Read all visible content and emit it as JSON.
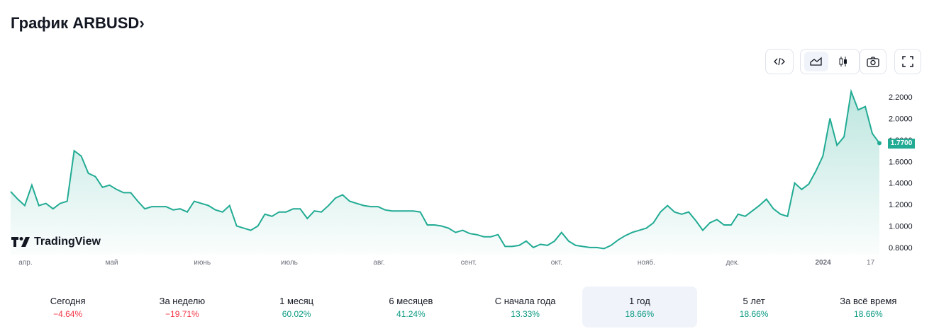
{
  "header": {
    "title": "График ARBUSD",
    "chevron": "›"
  },
  "toolbar": {
    "buttons": [
      "embed-icon",
      "area-chart-icon",
      "candles-icon",
      "camera-icon",
      "fullscreen-icon"
    ],
    "active": "area-chart-icon"
  },
  "logo": {
    "text": "TradingView"
  },
  "colors": {
    "line": "#22ab94",
    "neg": "#f23645",
    "pos": "#089981"
  },
  "chart_data": {
    "type": "area",
    "title": "ARBUSD",
    "ylim": [
      0.8,
      2.2
    ],
    "yticks": [
      "2.2000",
      "2.0000",
      "1.8000",
      "1.6000",
      "1.4000",
      "1.2000",
      "1.0000",
      "0.8000"
    ],
    "ytick_values": [
      2.2,
      2.0,
      1.8,
      1.6,
      1.4,
      1.2,
      1.0,
      0.8
    ],
    "xticks": [
      {
        "label": "апр.",
        "pos": 0.029
      },
      {
        "label": "май",
        "pos": 0.127
      },
      {
        "label": "июнь",
        "pos": 0.23
      },
      {
        "label": "июль",
        "pos": 0.329
      },
      {
        "label": "авг.",
        "pos": 0.431
      },
      {
        "label": "сент.",
        "pos": 0.533
      },
      {
        "label": "окт.",
        "pos": 0.633
      },
      {
        "label": "нояб.",
        "pos": 0.735
      },
      {
        "label": "дек.",
        "pos": 0.833
      },
      {
        "label": "2024",
        "pos": 0.936,
        "bold": true
      },
      {
        "label": "17",
        "pos": 0.99
      }
    ],
    "last_price": "1.7700",
    "values": [
      1.32,
      1.25,
      1.19,
      1.38,
      1.19,
      1.21,
      1.16,
      1.21,
      1.23,
      1.7,
      1.65,
      1.49,
      1.46,
      1.36,
      1.38,
      1.34,
      1.31,
      1.31,
      1.23,
      1.16,
      1.18,
      1.18,
      1.18,
      1.15,
      1.16,
      1.13,
      1.23,
      1.21,
      1.19,
      1.15,
      1.13,
      1.19,
      1.0,
      0.98,
      0.96,
      1.0,
      1.11,
      1.09,
      1.13,
      1.13,
      1.16,
      1.16,
      1.07,
      1.14,
      1.13,
      1.19,
      1.26,
      1.29,
      1.23,
      1.21,
      1.19,
      1.18,
      1.18,
      1.15,
      1.14,
      1.14,
      1.14,
      1.14,
      1.13,
      1.01,
      1.01,
      1.0,
      0.98,
      0.94,
      0.96,
      0.93,
      0.92,
      0.9,
      0.9,
      0.92,
      0.81,
      0.81,
      0.82,
      0.86,
      0.8,
      0.83,
      0.82,
      0.86,
      0.94,
      0.86,
      0.82,
      0.81,
      0.8,
      0.8,
      0.79,
      0.82,
      0.87,
      0.91,
      0.94,
      0.96,
      0.98,
      1.03,
      1.13,
      1.19,
      1.13,
      1.11,
      1.13,
      1.05,
      0.96,
      1.03,
      1.06,
      1.01,
      1.01,
      1.11,
      1.09,
      1.14,
      1.19,
      1.25,
      1.16,
      1.11,
      1.09,
      1.4,
      1.34,
      1.39,
      1.51,
      1.65,
      2.0,
      1.75,
      1.83,
      2.25,
      2.08,
      2.11,
      1.86,
      1.77
    ]
  },
  "periods": [
    {
      "label": "Сегодня",
      "value": "−4.64%",
      "sign": "neg"
    },
    {
      "label": "За неделю",
      "value": "−19.71%",
      "sign": "neg"
    },
    {
      "label": "1 месяц",
      "value": "60.02%",
      "sign": "pos"
    },
    {
      "label": "6 месяцев",
      "value": "41.24%",
      "sign": "pos"
    },
    {
      "label": "С начала года",
      "value": "13.33%",
      "sign": "pos"
    },
    {
      "label": "1 год",
      "value": "18.66%",
      "sign": "pos",
      "selected": true
    },
    {
      "label": "5 лет",
      "value": "18.66%",
      "sign": "pos"
    },
    {
      "label": "За всё время",
      "value": "18.66%",
      "sign": "pos"
    }
  ]
}
